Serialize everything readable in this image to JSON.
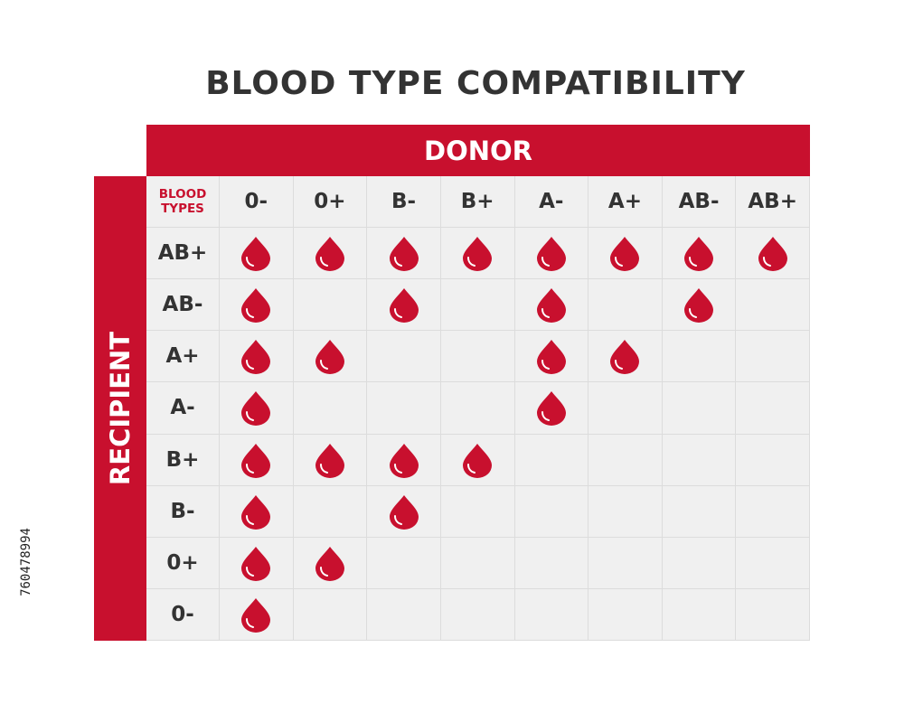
{
  "title": "BLOOD TYPE COMPATIBILITY",
  "donor_label": "DONOR",
  "recipient_label": "RECIPIENT",
  "corner_label": [
    "BLOOD",
    "TYPES"
  ],
  "stock_id": "760478994",
  "colors": {
    "accent": "#c8102e",
    "text": "#333333",
    "cell_bg": "#f0f0f0"
  },
  "icon": "blood-drop-icon",
  "donors": [
    "0-",
    "0+",
    "B-",
    "B+",
    "A-",
    "A+",
    "AB-",
    "AB+"
  ],
  "rows": [
    {
      "recipient": "AB+",
      "compatible": [
        1,
        1,
        1,
        1,
        1,
        1,
        1,
        1
      ]
    },
    {
      "recipient": "AB-",
      "compatible": [
        1,
        0,
        1,
        0,
        1,
        0,
        1,
        0
      ]
    },
    {
      "recipient": "A+",
      "compatible": [
        1,
        1,
        0,
        0,
        1,
        1,
        0,
        0
      ]
    },
    {
      "recipient": "A-",
      "compatible": [
        1,
        0,
        0,
        0,
        1,
        0,
        0,
        0
      ]
    },
    {
      "recipient": "B+",
      "compatible": [
        1,
        1,
        1,
        1,
        0,
        0,
        0,
        0
      ]
    },
    {
      "recipient": "B-",
      "compatible": [
        1,
        0,
        1,
        0,
        0,
        0,
        0,
        0
      ]
    },
    {
      "recipient": "0+",
      "compatible": [
        1,
        1,
        0,
        0,
        0,
        0,
        0,
        0
      ]
    },
    {
      "recipient": "0-",
      "compatible": [
        1,
        0,
        0,
        0,
        0,
        0,
        0,
        0
      ]
    }
  ]
}
